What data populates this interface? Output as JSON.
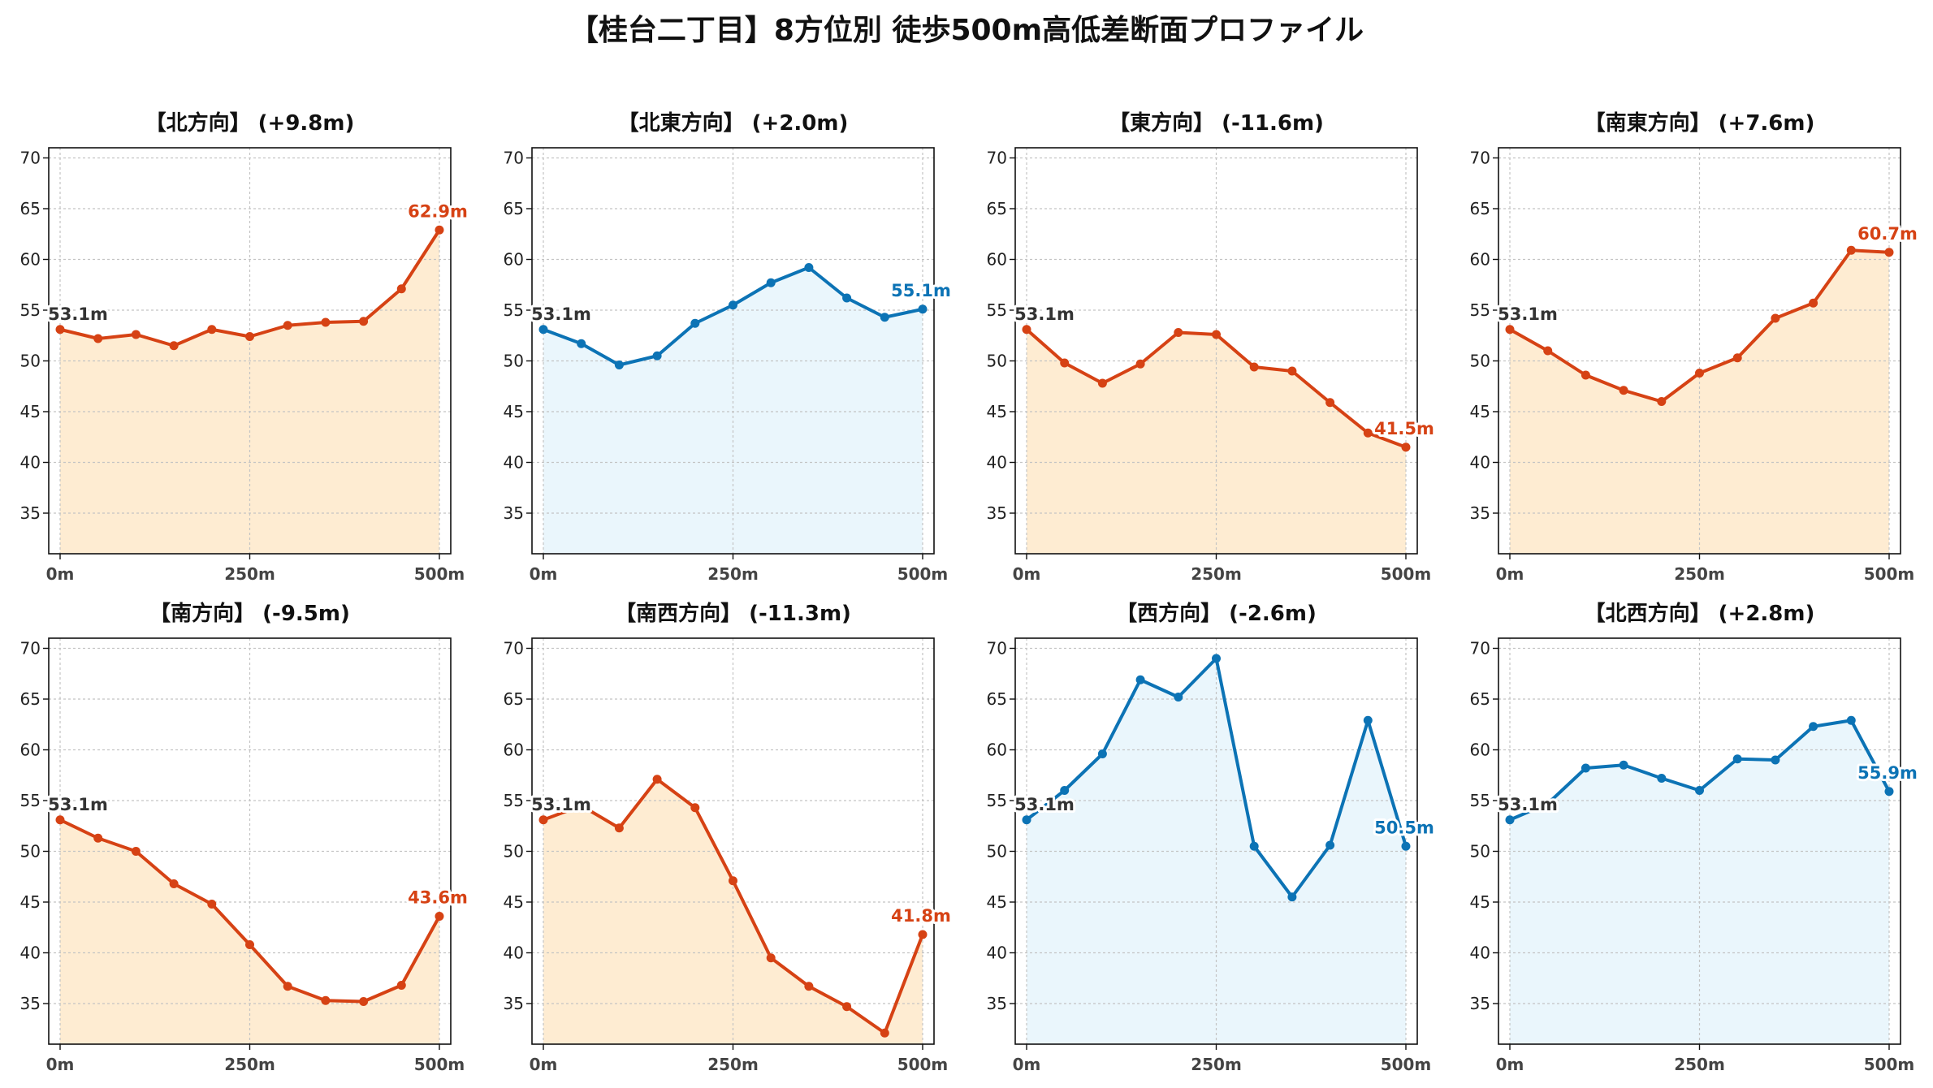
{
  "figure": {
    "title": "【桂台二丁目】8方位別 徒歩500m高低差断面プロファイル"
  },
  "colors": {
    "rise": "#d64214",
    "rise_fill": "#feecd2",
    "flat": "#0c73b5",
    "flat_fill": "#eaf6fc",
    "start_label": "#333333"
  },
  "chart_data": [
    {
      "type": "area",
      "title": "【北方向】 (+9.8m)",
      "trend": "rise",
      "x": [
        0,
        50,
        100,
        150,
        200,
        250,
        300,
        350,
        400,
        450,
        500
      ],
      "y": [
        53.1,
        52.2,
        52.6,
        51.5,
        53.1,
        52.4,
        53.5,
        53.8,
        53.9,
        57.1,
        62.9
      ],
      "xticks": [
        0,
        250,
        500
      ],
      "xtick_labels": [
        "0m",
        "250m",
        "500m"
      ],
      "yticks": [
        35,
        40,
        45,
        50,
        55,
        60,
        65,
        70
      ],
      "ylim": [
        31,
        71
      ],
      "xlim": [
        -15,
        515
      ],
      "grid": true,
      "start_label": "53.1m",
      "end_label": "62.9m"
    },
    {
      "type": "area",
      "title": "【北東方向】 (+2.0m)",
      "trend": "flat",
      "x": [
        0,
        50,
        100,
        150,
        200,
        250,
        300,
        350,
        400,
        450,
        500
      ],
      "y": [
        53.1,
        51.7,
        49.6,
        50.5,
        53.7,
        55.5,
        57.7,
        59.2,
        56.2,
        54.3,
        55.1
      ],
      "xticks": [
        0,
        250,
        500
      ],
      "xtick_labels": [
        "0m",
        "250m",
        "500m"
      ],
      "yticks": [
        35,
        40,
        45,
        50,
        55,
        60,
        65,
        70
      ],
      "ylim": [
        31,
        71
      ],
      "xlim": [
        -15,
        515
      ],
      "grid": true,
      "start_label": "53.1m",
      "end_label": "55.1m"
    },
    {
      "type": "area",
      "title": "【東方向】 (-11.6m)",
      "trend": "rise",
      "x": [
        0,
        50,
        100,
        150,
        200,
        250,
        300,
        350,
        400,
        450,
        500
      ],
      "y": [
        53.1,
        49.8,
        47.8,
        49.7,
        52.8,
        52.6,
        49.4,
        49.0,
        45.9,
        42.9,
        41.5
      ],
      "xticks": [
        0,
        250,
        500
      ],
      "xtick_labels": [
        "0m",
        "250m",
        "500m"
      ],
      "yticks": [
        35,
        40,
        45,
        50,
        55,
        60,
        65,
        70
      ],
      "ylim": [
        31,
        71
      ],
      "xlim": [
        -15,
        515
      ],
      "grid": true,
      "start_label": "53.1m",
      "end_label": "41.5m"
    },
    {
      "type": "area",
      "title": "【南東方向】 (+7.6m)",
      "trend": "rise",
      "x": [
        0,
        50,
        100,
        150,
        200,
        250,
        300,
        350,
        400,
        450,
        500
      ],
      "y": [
        53.1,
        51.0,
        48.6,
        47.1,
        46.0,
        48.8,
        50.3,
        54.2,
        55.7,
        60.9,
        60.7
      ],
      "xticks": [
        0,
        250,
        500
      ],
      "xtick_labels": [
        "0m",
        "250m",
        "500m"
      ],
      "yticks": [
        35,
        40,
        45,
        50,
        55,
        60,
        65,
        70
      ],
      "ylim": [
        31,
        71
      ],
      "xlim": [
        -15,
        515
      ],
      "grid": true,
      "start_label": "53.1m",
      "end_label": "60.7m"
    },
    {
      "type": "area",
      "title": "【南方向】 (-9.5m)",
      "trend": "rise",
      "x": [
        0,
        50,
        100,
        150,
        200,
        250,
        300,
        350,
        400,
        450,
        500
      ],
      "y": [
        53.1,
        51.3,
        50.0,
        46.8,
        44.8,
        40.8,
        36.7,
        35.3,
        35.2,
        36.8,
        43.6
      ],
      "xticks": [
        0,
        250,
        500
      ],
      "xtick_labels": [
        "0m",
        "250m",
        "500m"
      ],
      "yticks": [
        35,
        40,
        45,
        50,
        55,
        60,
        65,
        70
      ],
      "ylim": [
        31,
        71
      ],
      "xlim": [
        -15,
        515
      ],
      "grid": true,
      "start_label": "53.1m",
      "end_label": "43.6m"
    },
    {
      "type": "area",
      "title": "【南西方向】 (-11.3m)",
      "trend": "rise",
      "x": [
        0,
        50,
        100,
        150,
        200,
        250,
        300,
        350,
        400,
        450,
        500
      ],
      "y": [
        53.1,
        54.5,
        52.3,
        57.1,
        54.3,
        47.1,
        39.5,
        36.7,
        34.7,
        32.1,
        41.8
      ],
      "xticks": [
        0,
        250,
        500
      ],
      "xtick_labels": [
        "0m",
        "250m",
        "500m"
      ],
      "yticks": [
        35,
        40,
        45,
        50,
        55,
        60,
        65,
        70
      ],
      "ylim": [
        31,
        71
      ],
      "xlim": [
        -15,
        515
      ],
      "grid": true,
      "start_label": "53.1m",
      "end_label": "41.8m"
    },
    {
      "type": "area",
      "title": "【西方向】 (-2.6m)",
      "trend": "flat",
      "x": [
        0,
        50,
        100,
        150,
        200,
        250,
        300,
        350,
        400,
        450,
        500
      ],
      "y": [
        53.1,
        56.0,
        59.6,
        66.9,
        65.2,
        69.0,
        50.5,
        45.5,
        50.6,
        62.9,
        50.5
      ],
      "xticks": [
        0,
        250,
        500
      ],
      "xtick_labels": [
        "0m",
        "250m",
        "500m"
      ],
      "yticks": [
        35,
        40,
        45,
        50,
        55,
        60,
        65,
        70
      ],
      "ylim": [
        31,
        71
      ],
      "xlim": [
        -15,
        515
      ],
      "grid": true,
      "start_label": "53.1m",
      "end_label": "50.5m"
    },
    {
      "type": "area",
      "title": "【北西方向】 (+2.8m)",
      "trend": "flat",
      "x": [
        0,
        50,
        100,
        150,
        200,
        250,
        300,
        350,
        400,
        450,
        500
      ],
      "y": [
        53.1,
        54.7,
        58.2,
        58.5,
        57.2,
        56.0,
        59.1,
        59.0,
        62.3,
        62.9,
        55.9
      ],
      "xticks": [
        0,
        250,
        500
      ],
      "xtick_labels": [
        "0m",
        "250m",
        "500m"
      ],
      "yticks": [
        35,
        40,
        45,
        50,
        55,
        60,
        65,
        70
      ],
      "ylim": [
        31,
        71
      ],
      "xlim": [
        -15,
        515
      ],
      "grid": true,
      "start_label": "53.1m",
      "end_label": "55.9m"
    }
  ]
}
